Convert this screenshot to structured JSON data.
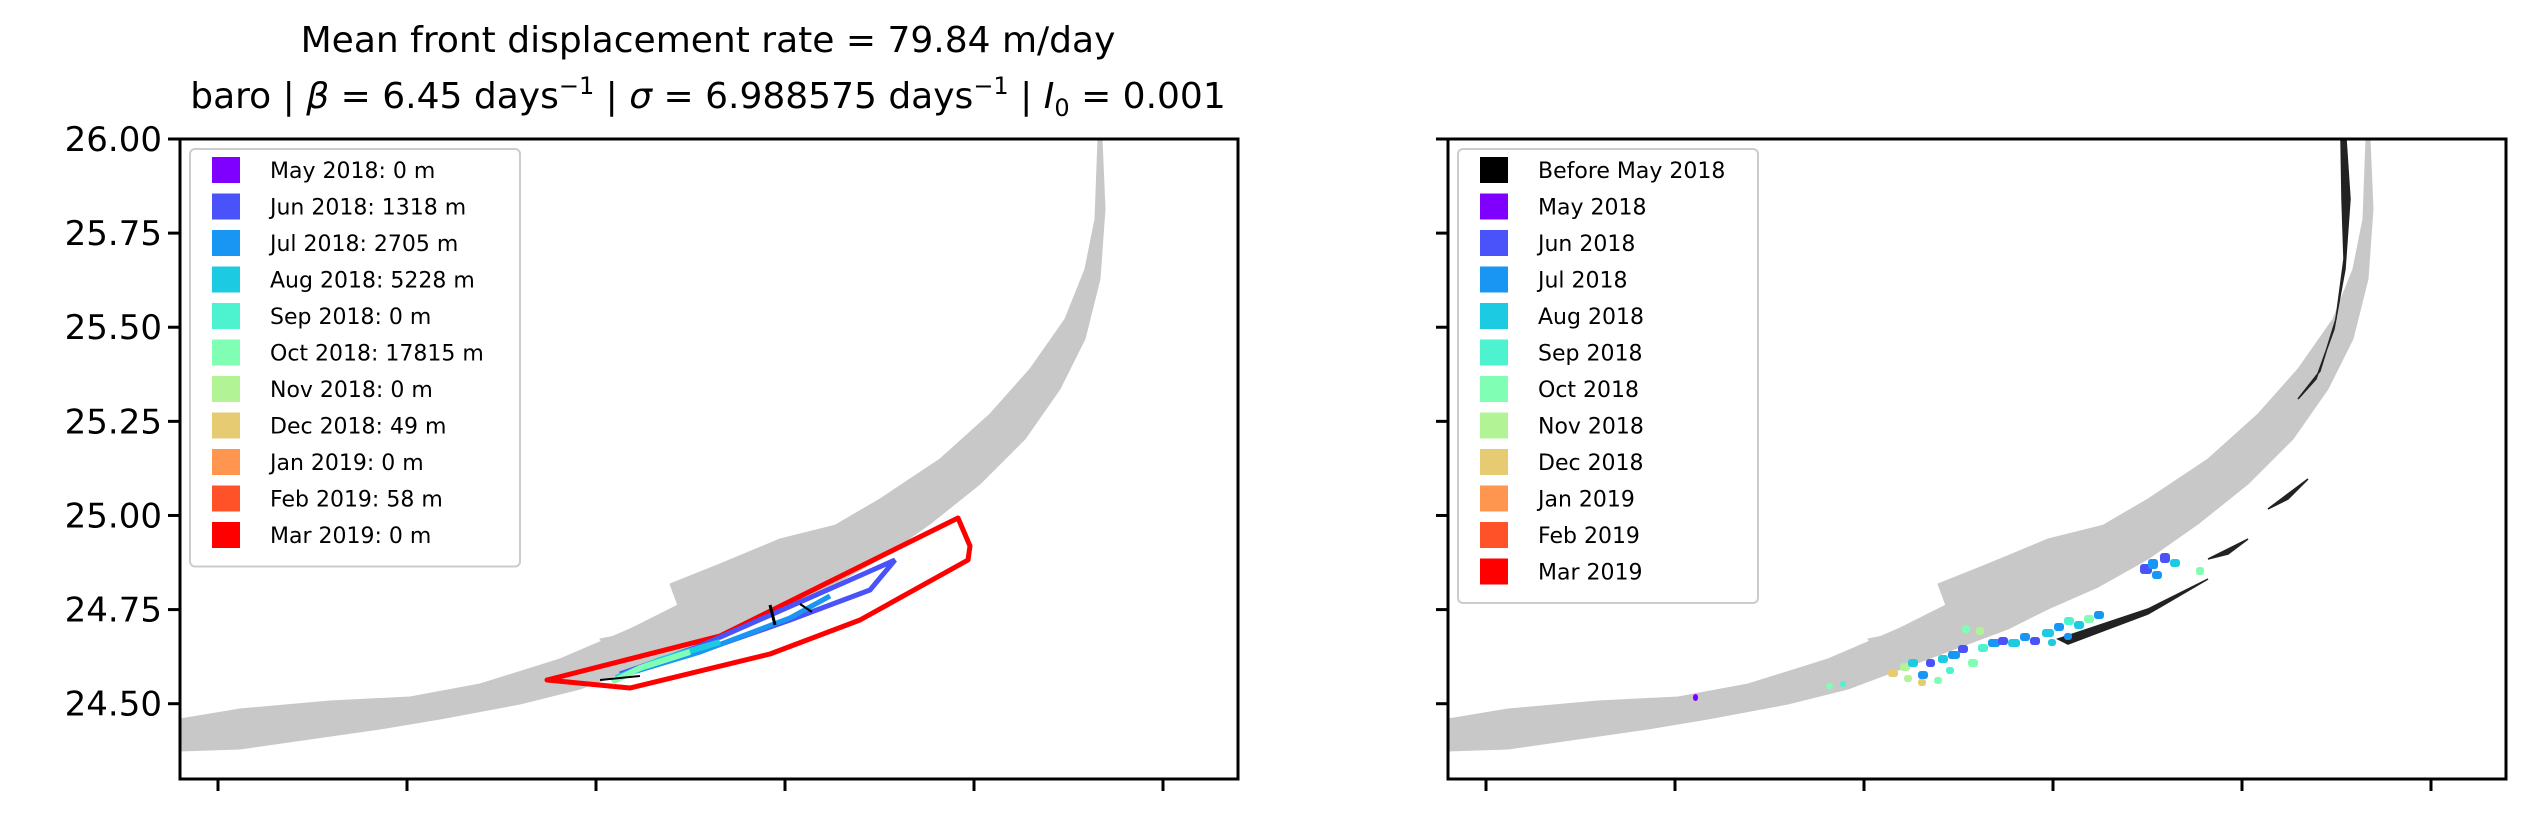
{
  "chart_data": [
    {
      "type": "scatter",
      "title_line1": "Mean front displacement rate = 79.84 m/day",
      "title_line2": "baro | β = 6.45 days⁻¹ | σ = 6.988575 days⁻¹ | I₀ = 0.001",
      "title_line2_parts": {
        "prefix": "baro | ",
        "beta": "β",
        "beta_val": " = 6.45 days",
        "sigma_sep": " | ",
        "sigma": "σ",
        "sigma_val": " = 6.988575 days",
        "i0_sep": " | ",
        "i0": "I",
        "i0_sub": "0",
        "i0_val": " = 0.001",
        "exp": "−1"
      },
      "ylim": [
        24.3,
        26.0
      ],
      "xlim": [
        -82.1,
        -79.8
      ],
      "yticks": [
        "24.50",
        "24.75",
        "25.00",
        "25.25",
        "25.50",
        "25.75",
        "26.00"
      ],
      "ytick_values": [
        24.5,
        24.75,
        25.0,
        25.25,
        25.5,
        25.75,
        26.0
      ],
      "xtick_count": 6,
      "legend": [
        {
          "label": "May 2018: 0 m",
          "color": "#8000ff"
        },
        {
          "label": "Jun 2018: 1318 m",
          "color": "#4a52f9"
        },
        {
          "label": "Jul 2018: 2705 m",
          "color": "#1996f3"
        },
        {
          "label": "Aug 2018: 5228 m",
          "color": "#1ccbe2"
        },
        {
          "label": "Sep 2018: 0 m",
          "color": "#4df3ce"
        },
        {
          "label": "Oct 2018: 17815 m",
          "color": "#80feb3"
        },
        {
          "label": "Nov 2018: 0 m",
          "color": "#b2f396"
        },
        {
          "label": "Dec 2018: 49 m",
          "color": "#e6cb73"
        },
        {
          "label": "Jan 2019: 0 m",
          "color": "#ff964f"
        },
        {
          "label": "Feb 2019: 58 m",
          "color": "#ff5229"
        },
        {
          "label": "Mar 2019: 0 m",
          "color": "#ff0000"
        }
      ],
      "legend_position": "upper-left",
      "land_color": "#c8c8c8"
    },
    {
      "type": "scatter",
      "ylim": [
        24.3,
        26.0
      ],
      "xlim": [
        -82.1,
        -79.8
      ],
      "xtick_count": 6,
      "legend": [
        {
          "label": "Before May 2018",
          "color": "#000000"
        },
        {
          "label": "May 2018",
          "color": "#8000ff"
        },
        {
          "label": "Jun 2018",
          "color": "#4a52f9"
        },
        {
          "label": "Jul 2018",
          "color": "#1996f3"
        },
        {
          "label": "Aug 2018",
          "color": "#1ccbe2"
        },
        {
          "label": "Sep 2018",
          "color": "#4df3ce"
        },
        {
          "label": "Oct 2018",
          "color": "#80feb3"
        },
        {
          "label": "Nov 2018",
          "color": "#b2f396"
        },
        {
          "label": "Dec 2018",
          "color": "#e6cb73"
        },
        {
          "label": "Jan 2019",
          "color": "#ff964f"
        },
        {
          "label": "Feb 2019",
          "color": "#ff5229"
        },
        {
          "label": "Mar 2019",
          "color": "#ff0000"
        }
      ],
      "legend_position": "upper-left",
      "land_color": "#c8c8c8"
    }
  ]
}
